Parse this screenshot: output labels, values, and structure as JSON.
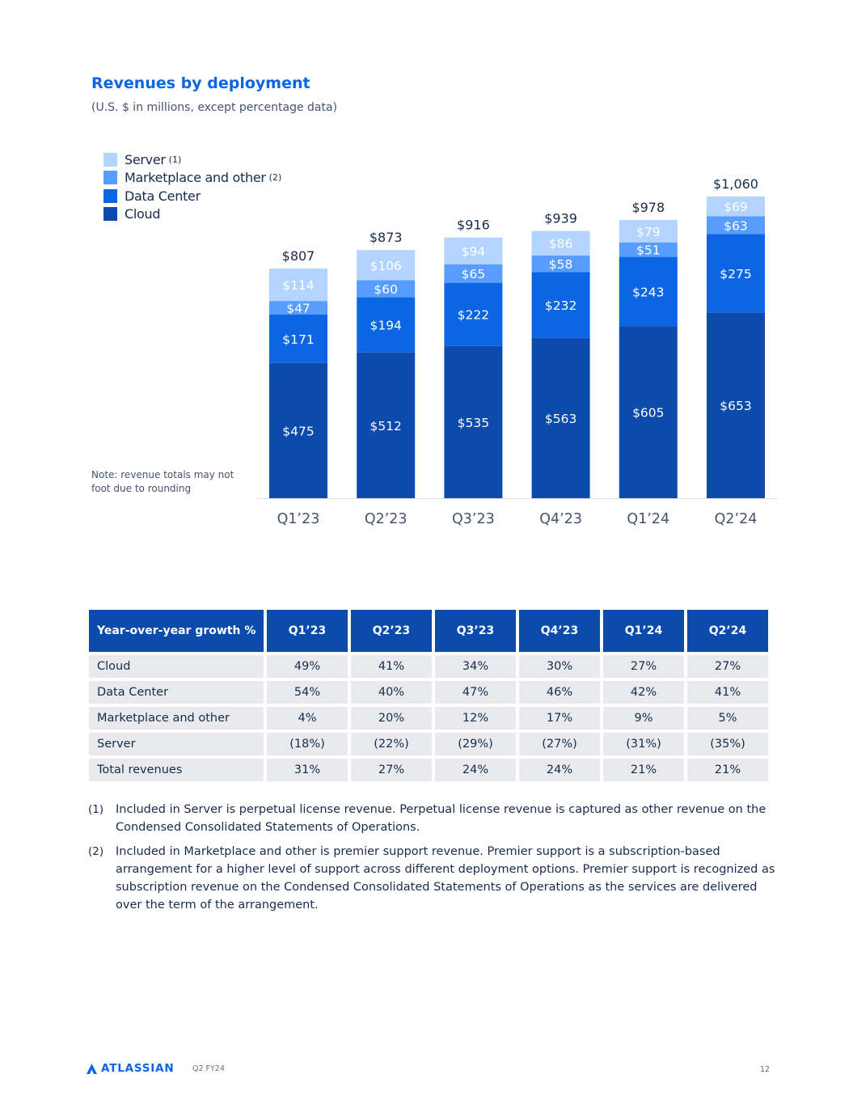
{
  "header": {
    "title": "Revenues by deployment",
    "subtitle": "(U.S. $ in millions, except percentage data)"
  },
  "legend": [
    {
      "label": "Server",
      "note": "(1)",
      "color": "#b3d4ff"
    },
    {
      "label": "Marketplace and other",
      "note": "(2)",
      "color": "#579dff"
    },
    {
      "label": "Data Center",
      "note": "",
      "color": "#0c66e4"
    },
    {
      "label": "Cloud",
      "note": "",
      "color": "#0c4bab"
    }
  ],
  "note": "Note: revenue totals may not foot due to rounding",
  "chart_data": {
    "type": "bar",
    "stacked": true,
    "title": "Revenues by deployment",
    "categories": [
      "Q1’23",
      "Q2’23",
      "Q3’23",
      "Q4’23",
      "Q1’24",
      "Q2’24"
    ],
    "series": [
      {
        "name": "Cloud",
        "color": "#0c4bab",
        "values": [
          475,
          512,
          535,
          563,
          605,
          653
        ],
        "labels": [
          "$475",
          "$512",
          "$535",
          "$563",
          "$605",
          "$653"
        ]
      },
      {
        "name": "Data Center",
        "color": "#0c66e4",
        "values": [
          171,
          194,
          222,
          232,
          243,
          275
        ],
        "labels": [
          "$171",
          "$194",
          "$222",
          "$232",
          "$243",
          "$275"
        ]
      },
      {
        "name": "Marketplace and other",
        "color": "#579dff",
        "values": [
          47,
          60,
          65,
          58,
          51,
          63
        ],
        "labels": [
          "$47",
          "$60",
          "$65",
          "$58",
          "$51",
          "$63"
        ]
      },
      {
        "name": "Server",
        "color": "#b3d4ff",
        "values": [
          114,
          106,
          94,
          86,
          79,
          69
        ],
        "labels": [
          "$114",
          "$106",
          "$94",
          "$86",
          "$79",
          "$69"
        ]
      }
    ],
    "totals": [
      807,
      873,
      916,
      939,
      978,
      1060
    ],
    "total_labels": [
      "$807",
      "$873",
      "$916",
      "$939",
      "$978",
      "$1,060"
    ],
    "ylim": [
      0,
      1060
    ],
    "grid": false,
    "legend_position": "top-left"
  },
  "table": {
    "header": [
      "Year-over-year growth %",
      "Q1’23",
      "Q2’23",
      "Q3’23",
      "Q4’23",
      "Q1’24",
      "Q2’24"
    ],
    "rows": [
      {
        "label": "Cloud",
        "values": [
          "49%",
          "41%",
          "34%",
          "30%",
          "27%",
          "27%"
        ]
      },
      {
        "label": "Data Center",
        "values": [
          "54%",
          "40%",
          "47%",
          "46%",
          "42%",
          "41%"
        ]
      },
      {
        "label": "Marketplace and other",
        "values": [
          "4%",
          "20%",
          "12%",
          "17%",
          "9%",
          "5%"
        ]
      },
      {
        "label": "Server",
        "values": [
          "(18%)",
          "(22%)",
          "(29%)",
          "(27%)",
          "(31%)",
          "(35%)"
        ]
      },
      {
        "label": "Total revenues",
        "values": [
          "31%",
          "27%",
          "24%",
          "24%",
          "21%",
          "21%"
        ]
      }
    ]
  },
  "footnotes": [
    {
      "num": "(1)",
      "text": "Included in Server is perpetual license revenue. Perpetual license revenue is captured as other revenue on the Condensed Consolidated Statements of Operations."
    },
    {
      "num": "(2)",
      "text": "Included in Marketplace and other is premier support revenue. Premier support is a subscription-based arrangement for a higher level of support across different deployment options. Premier support is recognized as subscription revenue on the Condensed Consolidated Statements of Operations as the services are delivered over the term of the arrangement."
    }
  ],
  "footer": {
    "brand": "ATLASSIAN",
    "period": "Q2 FY24",
    "page": "12"
  }
}
